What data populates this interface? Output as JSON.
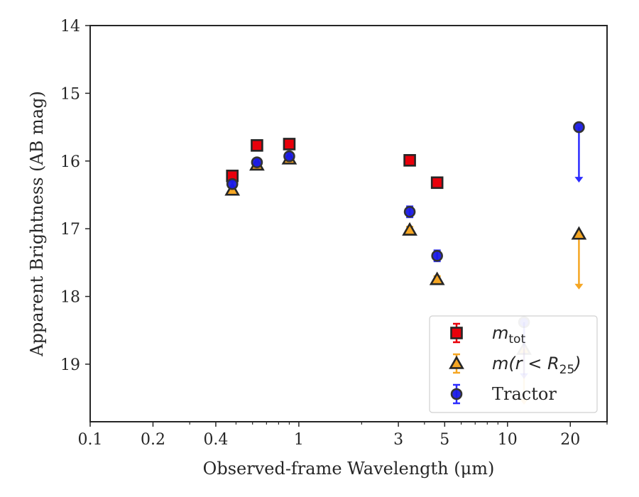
{
  "chart_data": {
    "type": "scatter",
    "title": "",
    "xlabel": "Observed-frame Wavelength (μm)",
    "ylabel": "Apparent Brightness (AB mag)",
    "xscale": "log",
    "yinverted": true,
    "xlim": [
      0.1,
      30
    ],
    "ylim": [
      14,
      19.85
    ],
    "grid": false,
    "legend_position": "lower-right",
    "xticks": [
      {
        "value": 0.1,
        "label": "0.1"
      },
      {
        "value": 0.2,
        "label": "0.2"
      },
      {
        "value": 0.4,
        "label": "0.4"
      },
      {
        "value": 1,
        "label": "1"
      },
      {
        "value": 3,
        "label": "3"
      },
      {
        "value": 5,
        "label": "5"
      },
      {
        "value": 10,
        "label": "10"
      },
      {
        "value": 20,
        "label": "20"
      }
    ],
    "yticks": [
      {
        "value": 14,
        "label": "14"
      },
      {
        "value": 15,
        "label": "15"
      },
      {
        "value": 16,
        "label": "16"
      },
      {
        "value": 17,
        "label": "17"
      },
      {
        "value": 18,
        "label": "18"
      },
      {
        "value": 19,
        "label": "19"
      }
    ],
    "series": [
      {
        "name": "m_tot",
        "marker": "square",
        "color": "#e8000b",
        "err_color": "#e8000b",
        "points": [
          {
            "x": 0.48,
            "y": 16.22,
            "err": 0.05
          },
          {
            "x": 0.63,
            "y": 15.77,
            "err": 0.04
          },
          {
            "x": 0.9,
            "y": 15.75,
            "err": 0.04
          },
          {
            "x": 3.4,
            "y": 15.99,
            "err": 0.06
          },
          {
            "x": 4.6,
            "y": 16.32,
            "err": 0.06
          }
        ]
      },
      {
        "name": "m(r < R25)",
        "marker": "triangle",
        "color": "#f5a623",
        "err_color": "#f5a623",
        "points": [
          {
            "x": 0.48,
            "y": 16.43,
            "err": 0.04
          },
          {
            "x": 0.63,
            "y": 16.06,
            "err": 0.04
          },
          {
            "x": 0.9,
            "y": 15.97,
            "err": 0.04
          },
          {
            "x": 3.4,
            "y": 17.02,
            "err": 0.05
          },
          {
            "x": 4.6,
            "y": 17.75,
            "err": 0.05
          },
          {
            "x": 12,
            "y": 18.78,
            "upper_limit": true,
            "faded": true
          },
          {
            "x": 22,
            "y": 17.08,
            "upper_limit": true
          }
        ]
      },
      {
        "name": "Tractor",
        "marker": "circle",
        "color": "#1a1ae6",
        "err_color": "#2c2cff",
        "points": [
          {
            "x": 0.48,
            "y": 16.34,
            "err": 0.05
          },
          {
            "x": 0.63,
            "y": 16.02,
            "err": 0.05
          },
          {
            "x": 0.9,
            "y": 15.93,
            "err": 0.05
          },
          {
            "x": 3.4,
            "y": 16.75,
            "err": 0.08
          },
          {
            "x": 4.6,
            "y": 17.4,
            "err": 0.08
          },
          {
            "x": 12,
            "y": 18.38,
            "upper_limit": true,
            "faded": true
          },
          {
            "x": 22,
            "y": 15.5,
            "upper_limit": true
          }
        ]
      }
    ],
    "legend": [
      {
        "marker": "square",
        "label_main": "m",
        "label_sub": "tot",
        "label_rest": ""
      },
      {
        "marker": "triangle",
        "label_main": "m(r < R",
        "label_sub": "25",
        "label_rest": ")"
      },
      {
        "marker": "circle",
        "label_main": "Tractor",
        "label_sub": "",
        "label_rest": ""
      }
    ]
  }
}
